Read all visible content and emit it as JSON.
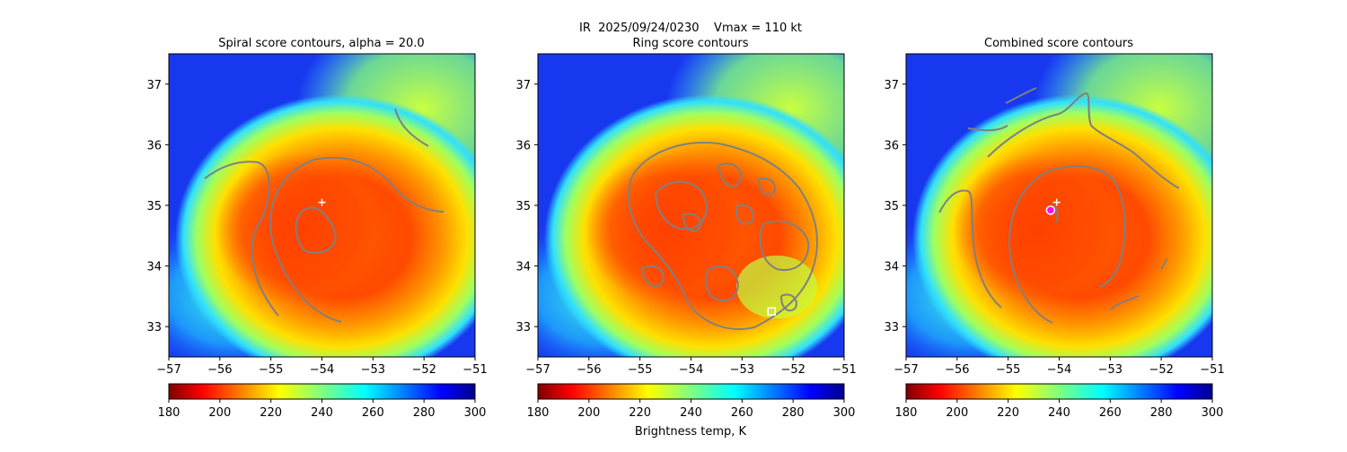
{
  "figure": {
    "suptitle": "IR  2025/09/24/0230    Vmax = 110 kt",
    "colorbar_label": "Brightness temp, K"
  },
  "colors": {
    "contour": "#808080",
    "marker": "#ffffff",
    "center_circle": "#ff00ff"
  },
  "chart_data": [
    {
      "type": "heatmap",
      "title": "Spiral score contours, alpha = 20.0",
      "xlim": [
        -57,
        -51
      ],
      "ylim": [
        32.5,
        37.5
      ],
      "xticks": [
        -57,
        -56,
        -55,
        -54,
        -53,
        -52,
        -51
      ],
      "yticks": [
        33,
        34,
        35,
        36,
        37
      ],
      "colormap": "jet_r",
      "clim": [
        180,
        300
      ],
      "colorbar_ticks": [
        180,
        200,
        220,
        240,
        260,
        280,
        300
      ],
      "markers": [
        {
          "shape": "plus",
          "lon": -54.0,
          "lat": 35.05
        }
      ]
    },
    {
      "type": "heatmap",
      "title": "Ring score contours",
      "xlim": [
        -57,
        -51
      ],
      "ylim": [
        32.5,
        37.5
      ],
      "xticks": [
        -57,
        -56,
        -55,
        -54,
        -53,
        -52,
        -51
      ],
      "yticks": [
        33,
        34,
        35,
        36,
        37
      ],
      "colormap": "jet_r",
      "clim": [
        180,
        300
      ],
      "colorbar_ticks": [
        180,
        200,
        220,
        240,
        260,
        280,
        300
      ],
      "markers": [
        {
          "shape": "square",
          "lon": -52.42,
          "lat": 33.25
        }
      ]
    },
    {
      "type": "heatmap",
      "title": "Combined score contours",
      "xlim": [
        -57,
        -51
      ],
      "ylim": [
        32.5,
        37.5
      ],
      "xticks": [
        -57,
        -56,
        -55,
        -54,
        -53,
        -52,
        -51
      ],
      "yticks": [
        33,
        34,
        35,
        36,
        37
      ],
      "colormap": "jet_r",
      "clim": [
        180,
        300
      ],
      "colorbar_ticks": [
        180,
        200,
        220,
        240,
        260,
        280,
        300
      ],
      "markers": [
        {
          "shape": "circle",
          "lon": -54.17,
          "lat": 34.92
        },
        {
          "shape": "plus",
          "lon": -54.05,
          "lat": 35.05
        }
      ]
    }
  ]
}
